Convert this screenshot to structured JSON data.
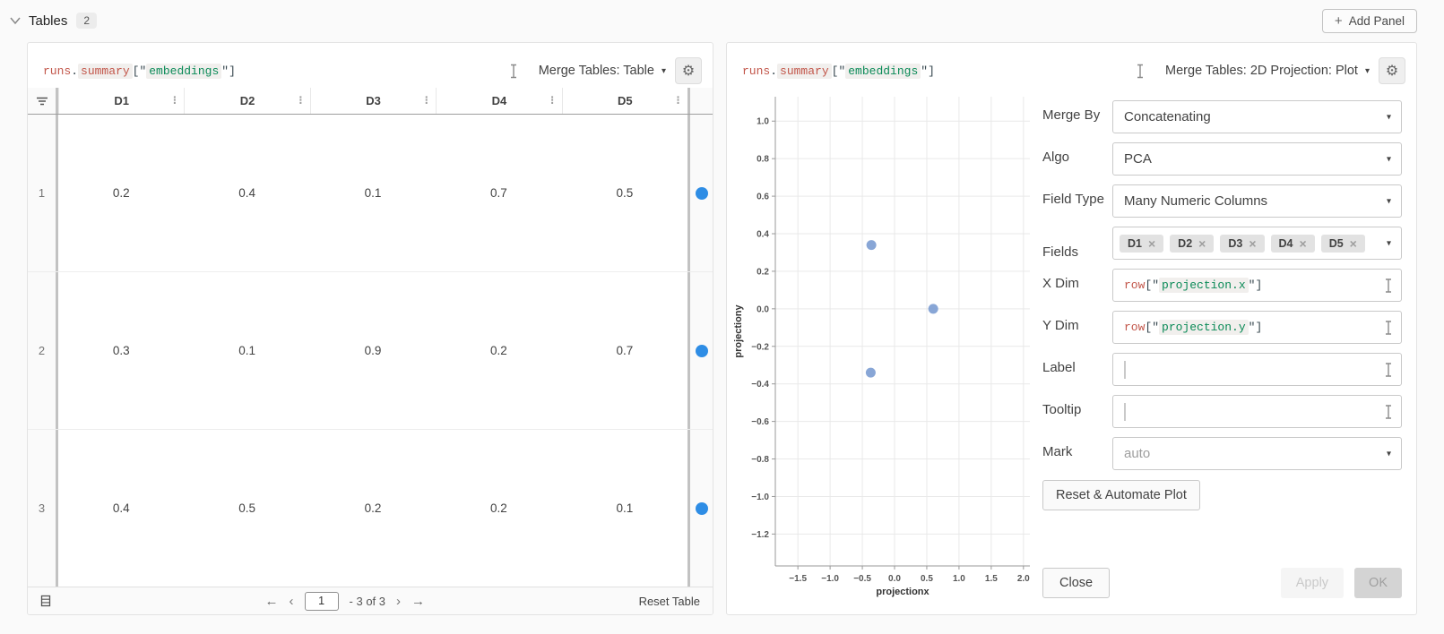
{
  "toolbar": {
    "section_title": "Tables",
    "panel_count": "2",
    "add_panel": "Add Panel"
  },
  "left_panel": {
    "title_code": {
      "obj": "runs",
      "dot": ".",
      "attr": "summary",
      "open": "[\"",
      "key": "embeddings",
      "close": "\"]"
    },
    "panel_type": "Merge Tables: Table",
    "table": {
      "columns": [
        "D1",
        "D2",
        "D3",
        "D4",
        "D5"
      ],
      "rows": [
        {
          "index": "1",
          "values": [
            "0.2",
            "0.4",
            "0.1",
            "0.7",
            "0.5"
          ]
        },
        {
          "index": "2",
          "values": [
            "0.3",
            "0.1",
            "0.9",
            "0.2",
            "0.7"
          ]
        },
        {
          "index": "3",
          "values": [
            "0.4",
            "0.5",
            "0.2",
            "0.2",
            "0.1"
          ]
        }
      ],
      "row_marker_color": "#2e8de5"
    },
    "footer": {
      "page": "1",
      "range": "- 3 of 3",
      "reset": "Reset Table"
    }
  },
  "right_panel": {
    "title_code": {
      "obj": "runs",
      "dot": ".",
      "attr": "summary",
      "open": "[\"",
      "key": "embeddings",
      "close": "\"]"
    },
    "panel_type": "Merge Tables: 2D Projection: Plot",
    "form": {
      "merge_by": {
        "label": "Merge By",
        "value": "Concatenating"
      },
      "algo": {
        "label": "Algo",
        "value": "PCA"
      },
      "field_type": {
        "label": "Field Type",
        "value": "Many Numeric Columns"
      },
      "fields": {
        "label": "Fields",
        "tags": [
          "D1",
          "D2",
          "D3",
          "D4",
          "D5"
        ]
      },
      "x_dim": {
        "label": "X Dim",
        "code": {
          "fn": "row",
          "open": "[\"",
          "key": "projection.x",
          "close": "\"]"
        }
      },
      "y_dim": {
        "label": "Y Dim",
        "code": {
          "fn": "row",
          "open": "[\"",
          "key": "projection.y",
          "close": "\"]"
        }
      },
      "label_field": {
        "label": "Label",
        "value": ""
      },
      "tooltip": {
        "label": "Tooltip",
        "value": ""
      },
      "mark": {
        "label": "Mark",
        "placeholder": "auto"
      },
      "reset_button": "Reset & Automate Plot",
      "close": "Close",
      "apply": "Apply",
      "ok": "OK"
    }
  },
  "chart_data": {
    "type": "scatter",
    "points": [
      {
        "x": -0.36,
        "y": 0.34
      },
      {
        "x": 0.6,
        "y": 0.0
      },
      {
        "x": -0.37,
        "y": -0.34
      }
    ],
    "xlabel": "projectionx",
    "ylabel": "projectiony",
    "xlim": [
      -1.85,
      2.1
    ],
    "ylim": [
      -1.37,
      1.13
    ],
    "x_ticks": [
      -1.5,
      -1.0,
      -0.5,
      0.0,
      0.5,
      1.0,
      1.5,
      2.0
    ],
    "y_ticks": [
      1.0,
      0.8,
      0.6,
      0.4,
      0.2,
      0.0,
      -0.2,
      -0.4,
      -0.6,
      -0.8,
      -1.0,
      -1.2
    ],
    "grid": true,
    "legend": false,
    "point_color": "#7b9cd1"
  }
}
